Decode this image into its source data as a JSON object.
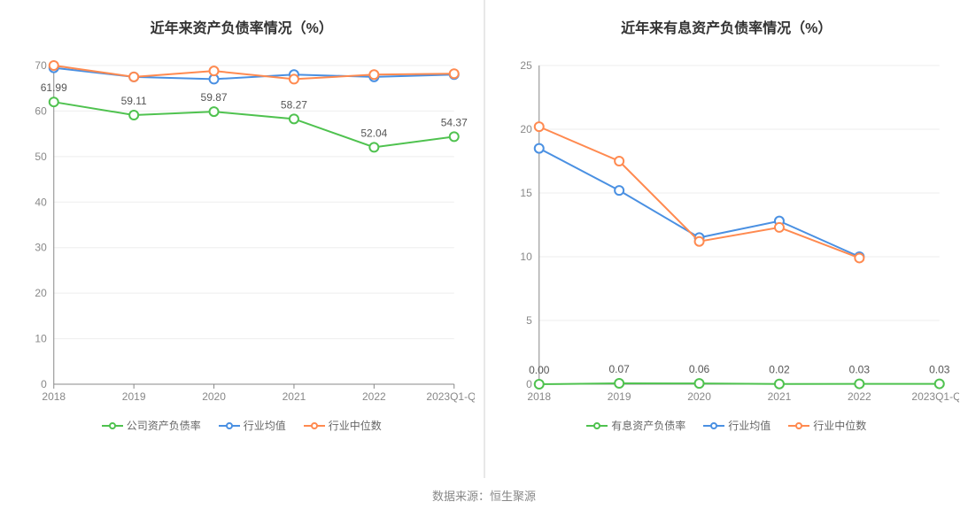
{
  "footer": "数据来源：恒生聚源",
  "charts": [
    {
      "title": "近年来资产负债率情况（%）",
      "type": "line",
      "categories": [
        "2018",
        "2019",
        "2020",
        "2021",
        "2022",
        "2023Q1-Q3"
      ],
      "ylim": [
        0,
        70
      ],
      "ytick_step": 10,
      "yticks": [
        0,
        10,
        20,
        30,
        40,
        50,
        60,
        70
      ],
      "grid_color": "#eeeeee",
      "axis_color": "#888888",
      "background_color": "#ffffff",
      "label_fontsize": 12,
      "title_fontsize": 16,
      "series": [
        {
          "name": "公司资产负债率",
          "color": "#4fc24f",
          "marker": "circle",
          "line_width": 2,
          "marker_size": 5,
          "show_labels": true,
          "values": [
            61.99,
            59.11,
            59.87,
            58.27,
            52.04,
            54.37
          ]
        },
        {
          "name": "行业均值",
          "color": "#4a90e2",
          "marker": "circle",
          "line_width": 2,
          "marker_size": 5,
          "show_labels": false,
          "values": [
            69.5,
            67.5,
            67.0,
            68.0,
            67.5,
            68.0
          ]
        },
        {
          "name": "行业中位数",
          "color": "#ff8a50",
          "marker": "circle",
          "line_width": 2,
          "marker_size": 5,
          "show_labels": false,
          "values": [
            70.0,
            67.5,
            68.8,
            67.0,
            68.0,
            68.2
          ]
        }
      ]
    },
    {
      "title": "近年来有息资产负债率情况（%）",
      "type": "line",
      "categories": [
        "2018",
        "2019",
        "2020",
        "2021",
        "2022",
        "2023Q1-Q3"
      ],
      "ylim": [
        0,
        25
      ],
      "ytick_step": 5,
      "yticks": [
        0,
        5,
        10,
        15,
        20,
        25
      ],
      "grid_color": "#eeeeee",
      "axis_color": "#888888",
      "background_color": "#ffffff",
      "label_fontsize": 12,
      "title_fontsize": 16,
      "series": [
        {
          "name": "有息资产负债率",
          "color": "#4fc24f",
          "marker": "circle",
          "line_width": 2,
          "marker_size": 5,
          "show_labels": true,
          "label_precision": 2,
          "values": [
            0.0,
            0.07,
            0.06,
            0.02,
            0.03,
            0.03
          ]
        },
        {
          "name": "行业均值",
          "color": "#4a90e2",
          "marker": "circle",
          "line_width": 2,
          "marker_size": 5,
          "show_labels": false,
          "values": [
            18.5,
            15.2,
            11.5,
            12.8,
            10.0,
            null
          ]
        },
        {
          "name": "行业中位数",
          "color": "#ff8a50",
          "marker": "circle",
          "line_width": 2,
          "marker_size": 5,
          "show_labels": false,
          "values": [
            20.2,
            17.5,
            11.2,
            12.3,
            9.9,
            null
          ]
        }
      ]
    }
  ]
}
